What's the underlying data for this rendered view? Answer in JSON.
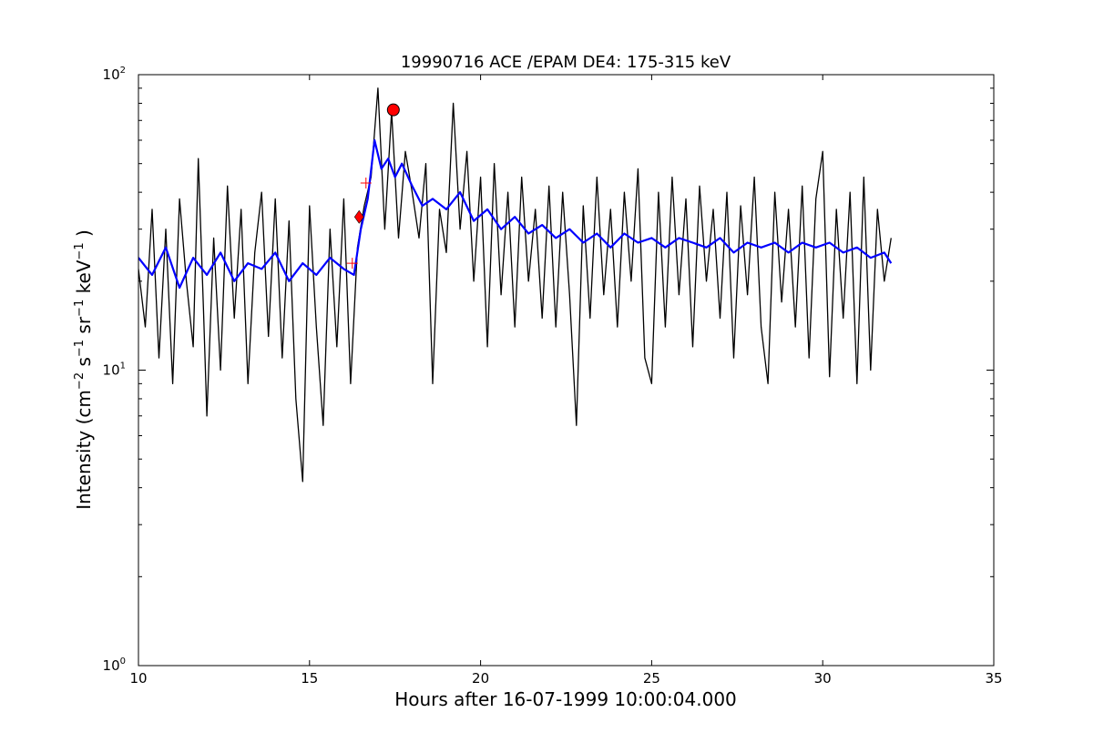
{
  "chart_data": {
    "type": "line",
    "title": "19990716 ACE /EPAM DE4: 175-315 keV",
    "xlabel": "Hours after 16-07-1999 10:00:04.000",
    "ylabel_parts": {
      "lead": "Intensity (cm",
      "e1": "−2",
      "s": " s",
      "e2": "−1",
      "sr": " sr",
      "e3": "−1",
      "kev": " keV",
      "e4": "−1",
      "tail": " )"
    },
    "yscale": "log",
    "xlim": [
      10,
      35
    ],
    "ylim": [
      1,
      100
    ],
    "x_ticks": [
      10,
      15,
      20,
      25,
      30,
      35
    ],
    "x_tick_labels": [
      "10",
      "15",
      "20",
      "25",
      "30",
      "35"
    ],
    "y_ticks": [
      {
        "value": 1,
        "base": "10",
        "exp": "0"
      },
      {
        "value": 10,
        "base": "10",
        "exp": "1"
      },
      {
        "value": 100,
        "base": "10",
        "exp": "2"
      }
    ],
    "grid": false,
    "colors": {
      "raw": "#000000",
      "smoothed": "#0000ff",
      "marker": "#ff0000"
    },
    "series": [
      {
        "role": "raw",
        "style": "black line",
        "points": [
          [
            10.0,
            22
          ],
          [
            10.2,
            14
          ],
          [
            10.4,
            35
          ],
          [
            10.6,
            11
          ],
          [
            10.8,
            30
          ],
          [
            11.0,
            9
          ],
          [
            11.2,
            38
          ],
          [
            11.4,
            20
          ],
          [
            11.6,
            12
          ],
          [
            11.75,
            52
          ],
          [
            11.9,
            16
          ],
          [
            12.0,
            7
          ],
          [
            12.2,
            28
          ],
          [
            12.4,
            10
          ],
          [
            12.6,
            42
          ],
          [
            12.8,
            15
          ],
          [
            13.0,
            35
          ],
          [
            13.2,
            9
          ],
          [
            13.4,
            25
          ],
          [
            13.6,
            40
          ],
          [
            13.8,
            13
          ],
          [
            14.0,
            38
          ],
          [
            14.2,
            11
          ],
          [
            14.4,
            32
          ],
          [
            14.6,
            8
          ],
          [
            14.8,
            4.2
          ],
          [
            15.0,
            36
          ],
          [
            15.2,
            14
          ],
          [
            15.4,
            6.5
          ],
          [
            15.6,
            30
          ],
          [
            15.8,
            12
          ],
          [
            16.0,
            38
          ],
          [
            16.2,
            9
          ],
          [
            16.4,
            26
          ],
          [
            16.6,
            36
          ],
          [
            16.8,
            45
          ],
          [
            17.0,
            90
          ],
          [
            17.2,
            30
          ],
          [
            17.4,
            75
          ],
          [
            17.6,
            28
          ],
          [
            17.8,
            55
          ],
          [
            18.0,
            40
          ],
          [
            18.2,
            28
          ],
          [
            18.4,
            50
          ],
          [
            18.6,
            9
          ],
          [
            18.8,
            35
          ],
          [
            19.0,
            25
          ],
          [
            19.2,
            80
          ],
          [
            19.4,
            30
          ],
          [
            19.6,
            55
          ],
          [
            19.8,
            20
          ],
          [
            20.0,
            45
          ],
          [
            20.2,
            12
          ],
          [
            20.4,
            50
          ],
          [
            20.6,
            18
          ],
          [
            20.8,
            40
          ],
          [
            21.0,
            14
          ],
          [
            21.2,
            45
          ],
          [
            21.4,
            20
          ],
          [
            21.6,
            35
          ],
          [
            21.8,
            15
          ],
          [
            22.0,
            42
          ],
          [
            22.2,
            14
          ],
          [
            22.4,
            40
          ],
          [
            22.6,
            18
          ],
          [
            22.8,
            6.5
          ],
          [
            23.0,
            36
          ],
          [
            23.2,
            15
          ],
          [
            23.4,
            45
          ],
          [
            23.6,
            18
          ],
          [
            23.8,
            35
          ],
          [
            24.0,
            14
          ],
          [
            24.2,
            40
          ],
          [
            24.4,
            20
          ],
          [
            24.6,
            48
          ],
          [
            24.8,
            11
          ],
          [
            25.0,
            9
          ],
          [
            25.2,
            40
          ],
          [
            25.4,
            14
          ],
          [
            25.6,
            45
          ],
          [
            25.8,
            18
          ],
          [
            26.0,
            38
          ],
          [
            26.2,
            12
          ],
          [
            26.4,
            42
          ],
          [
            26.6,
            20
          ],
          [
            26.8,
            35
          ],
          [
            27.0,
            15
          ],
          [
            27.2,
            40
          ],
          [
            27.4,
            11
          ],
          [
            27.6,
            36
          ],
          [
            27.8,
            18
          ],
          [
            28.0,
            45
          ],
          [
            28.2,
            14
          ],
          [
            28.4,
            9
          ],
          [
            28.6,
            40
          ],
          [
            28.8,
            17
          ],
          [
            29.0,
            35
          ],
          [
            29.2,
            14
          ],
          [
            29.4,
            42
          ],
          [
            29.6,
            11
          ],
          [
            29.8,
            38
          ],
          [
            30.0,
            55
          ],
          [
            30.2,
            9.5
          ],
          [
            30.4,
            35
          ],
          [
            30.6,
            15
          ],
          [
            30.8,
            40
          ],
          [
            31.0,
            9
          ],
          [
            31.2,
            45
          ],
          [
            31.4,
            10
          ],
          [
            31.6,
            35
          ],
          [
            31.8,
            20
          ],
          [
            32.0,
            28
          ]
        ]
      },
      {
        "role": "smoothed",
        "style": "blue line",
        "points": [
          [
            10.0,
            24
          ],
          [
            10.4,
            21
          ],
          [
            10.8,
            26
          ],
          [
            11.2,
            19
          ],
          [
            11.6,
            24
          ],
          [
            12.0,
            21
          ],
          [
            12.4,
            25
          ],
          [
            12.8,
            20
          ],
          [
            13.2,
            23
          ],
          [
            13.6,
            22
          ],
          [
            14.0,
            25
          ],
          [
            14.4,
            20
          ],
          [
            14.8,
            23
          ],
          [
            15.2,
            21
          ],
          [
            15.6,
            24
          ],
          [
            16.0,
            22
          ],
          [
            16.3,
            21
          ],
          [
            16.5,
            30
          ],
          [
            16.7,
            38
          ],
          [
            16.9,
            60
          ],
          [
            17.1,
            48
          ],
          [
            17.3,
            52
          ],
          [
            17.5,
            45
          ],
          [
            17.7,
            50
          ],
          [
            18.0,
            42
          ],
          [
            18.3,
            36
          ],
          [
            18.6,
            38
          ],
          [
            19.0,
            35
          ],
          [
            19.4,
            40
          ],
          [
            19.8,
            32
          ],
          [
            20.2,
            35
          ],
          [
            20.6,
            30
          ],
          [
            21.0,
            33
          ],
          [
            21.4,
            29
          ],
          [
            21.8,
            31
          ],
          [
            22.2,
            28
          ],
          [
            22.6,
            30
          ],
          [
            23.0,
            27
          ],
          [
            23.4,
            29
          ],
          [
            23.8,
            26
          ],
          [
            24.2,
            29
          ],
          [
            24.6,
            27
          ],
          [
            25.0,
            28
          ],
          [
            25.4,
            26
          ],
          [
            25.8,
            28
          ],
          [
            26.2,
            27
          ],
          [
            26.6,
            26
          ],
          [
            27.0,
            28
          ],
          [
            27.4,
            25
          ],
          [
            27.8,
            27
          ],
          [
            28.2,
            26
          ],
          [
            28.6,
            27
          ],
          [
            29.0,
            25
          ],
          [
            29.4,
            27
          ],
          [
            29.8,
            26
          ],
          [
            30.2,
            27
          ],
          [
            30.6,
            25
          ],
          [
            31.0,
            26
          ],
          [
            31.4,
            24
          ],
          [
            31.8,
            25
          ],
          [
            32.0,
            23
          ]
        ]
      }
    ],
    "markers": [
      {
        "shape": "diamond",
        "x": 16.45,
        "y": 33
      },
      {
        "shape": "circle",
        "x": 17.45,
        "y": 76
      },
      {
        "shape": "plus",
        "x": 16.25,
        "y": 23
      },
      {
        "shape": "plus",
        "x": 16.65,
        "y": 43
      }
    ]
  }
}
